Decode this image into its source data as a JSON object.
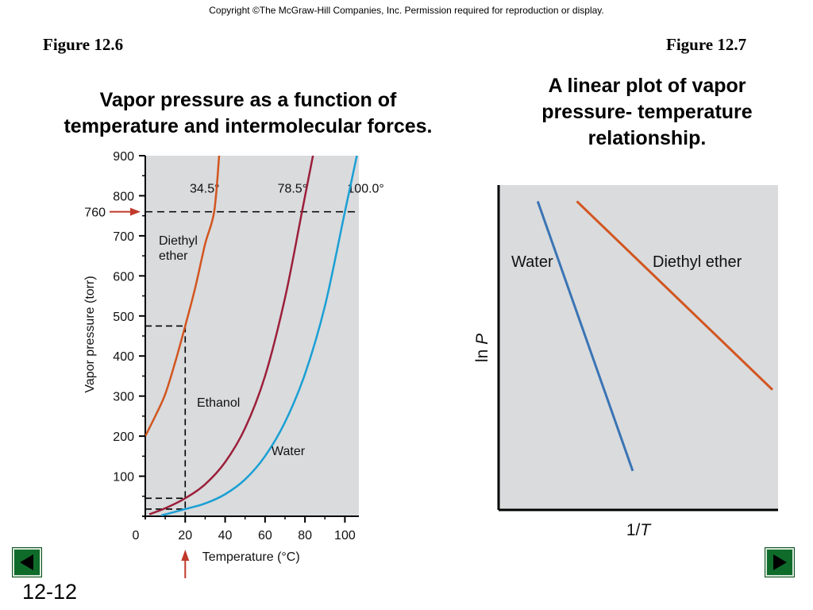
{
  "copyright": "Copyright ©The McGraw-Hill Companies, Inc.  Permission required for reproduction or display.",
  "figures": {
    "left": {
      "label": "Figure 12.6",
      "caption_lines": [
        "Vapor pressure as a function of",
        "temperature and intermolecular forces."
      ]
    },
    "right": {
      "label": "Figure 12.7",
      "caption_lines": [
        "A linear plot of vapor",
        "pressure- temperature",
        "relationship."
      ]
    }
  },
  "chart_data": [
    {
      "type": "line",
      "title": "",
      "xlabel": "Temperature (°C)",
      "ylabel": "Vapor pressure (torr)",
      "xlim": [
        0,
        107
      ],
      "ylim": [
        0,
        900
      ],
      "x_ticks": [
        "0",
        "20",
        "40",
        "60",
        "80",
        "100"
      ],
      "y_ticks": [
        "100",
        "200",
        "300",
        "400",
        "500",
        "600",
        "700",
        "800",
        "900"
      ],
      "reference_line": {
        "y": 760,
        "label": "760",
        "color": "#c0392b"
      },
      "boiling_points": [
        {
          "x": 34.5,
          "label": "34.5°"
        },
        {
          "x": 78.5,
          "label": "78.5°"
        },
        {
          "x": 100.0,
          "label": "100.0°"
        }
      ],
      "marker_x": 20,
      "series": [
        {
          "name": "Diethyl ether",
          "label_lines": [
            "Diethyl",
            "ether"
          ],
          "color": "#d2551f",
          "x": [
            0,
            5,
            10,
            15,
            20,
            25,
            30,
            34.5,
            37
          ],
          "y": [
            200,
            250,
            305,
            385,
            475,
            570,
            680,
            760,
            900
          ]
        },
        {
          "name": "Ethanol",
          "color": "#9c1f3a",
          "x": [
            2,
            10,
            20,
            30,
            40,
            50,
            60,
            70,
            78.5,
            84
          ],
          "y": [
            5,
            20,
            45,
            80,
            135,
            220,
            350,
            545,
            760,
            900
          ]
        },
        {
          "name": "Water",
          "color": "#1a9fd4",
          "x": [
            8,
            20,
            30,
            40,
            50,
            60,
            70,
            80,
            90,
            100,
            106
          ],
          "y": [
            2,
            18,
            32,
            55,
            92,
            150,
            235,
            355,
            525,
            760,
            900
          ]
        }
      ]
    },
    {
      "type": "line",
      "title": "",
      "xlabel_prefix": "1/",
      "xlabel_var": "T",
      "ylabel_prefix": "ln ",
      "ylabel_var": "P",
      "series": [
        {
          "name": "Water",
          "color": "#3a74b4",
          "x": [
            0.14,
            0.48
          ],
          "y": [
            0.95,
            0.12
          ]
        },
        {
          "name": "Diethyl ether",
          "color": "#d2551f",
          "x": [
            0.28,
            0.98
          ],
          "y": [
            0.95,
            0.37
          ]
        }
      ]
    }
  ],
  "nav": {
    "prev": "previous-slide",
    "next": "next-slide"
  },
  "slide_number": "12-12"
}
